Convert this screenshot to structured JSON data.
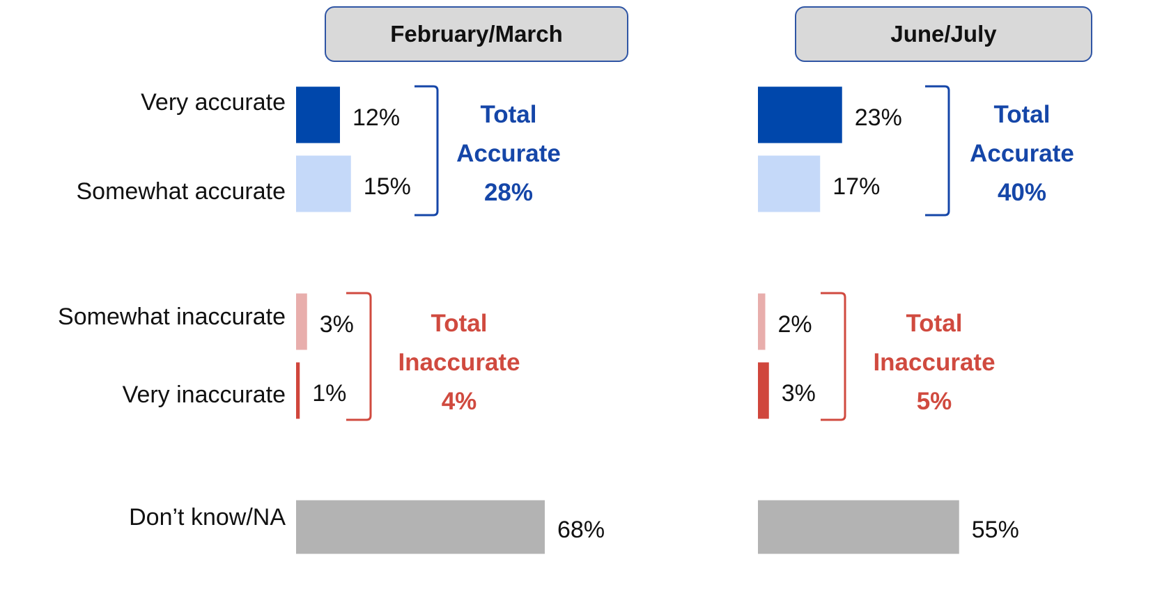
{
  "chart_data": {
    "type": "bar",
    "categories": [
      "Very accurate",
      "Somewhat accurate",
      "Somewhat inaccurate",
      "Very inaccurate",
      "Don’t know/NA"
    ],
    "colors": [
      "#0047ab",
      "#c5d9f9",
      "#e8aeac",
      "#d0463c",
      "#b3b3b3"
    ],
    "series": [
      {
        "name": "February/March",
        "values": [
          12,
          15,
          3,
          1,
          68
        ],
        "value_labels": [
          "12%",
          "15%",
          "3%",
          "1%",
          "68%"
        ],
        "totals": [
          {
            "label": "Total Accurate",
            "value_label": "28%",
            "color": "#1546a8"
          },
          {
            "label": "Total Inaccurate",
            "value_label": "4%",
            "color": "#d04a3f"
          }
        ]
      },
      {
        "name": "June/July",
        "values": [
          23,
          17,
          2,
          3,
          55
        ],
        "value_labels": [
          "23%",
          "17%",
          "2%",
          "3%",
          "55%"
        ],
        "totals": [
          {
            "label": "Total Accurate",
            "value_label": "40%",
            "color": "#1546a8"
          },
          {
            "label": "Total Inaccurate",
            "value_label": "5%",
            "color": "#d04a3f"
          }
        ]
      }
    ]
  }
}
